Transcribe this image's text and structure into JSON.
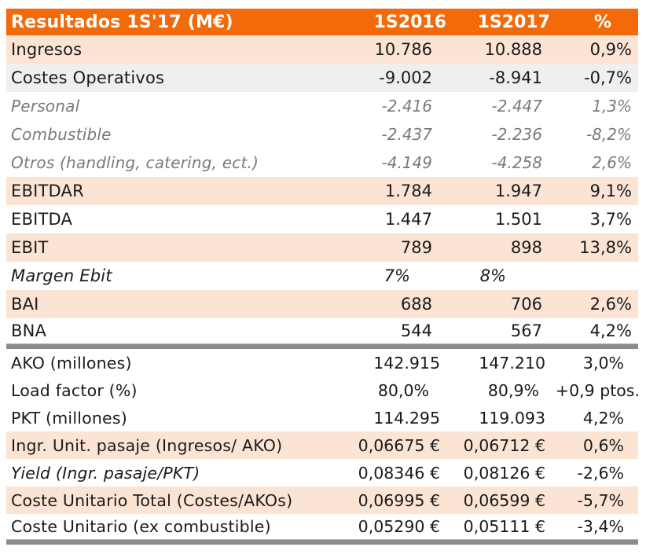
{
  "header": {
    "title": "Resultados 1S'17 (M€)",
    "col_2016": "1S2016",
    "col_2017": "1S2017",
    "col_pct": "%"
  },
  "colors": {
    "header_bg": "#F26A0A",
    "highlight_row": "#FCE4D4",
    "gray_row": "#EFEFEF",
    "rule": "#8C8C8C"
  },
  "results": [
    {
      "label": "Ingresos",
      "y2016": "10.786",
      "y2017": "10.888",
      "pct": "0,9%"
    },
    {
      "label": "Costes Operativos",
      "y2016": "-9.002",
      "y2017": "-8.941",
      "pct": "-0,7%"
    },
    {
      "label": "Personal",
      "y2016": "-2.416",
      "y2017": "-2.447",
      "pct": "1,3%"
    },
    {
      "label": "Combustible",
      "y2016": "-2.437",
      "y2017": "-2.236",
      "pct": "-8,2%"
    },
    {
      "label": "Otros (handling, catering, ect.)",
      "y2016": "-4.149",
      "y2017": "-4.258",
      "pct": "2,6%"
    },
    {
      "label": "EBITDAR",
      "y2016": "1.784",
      "y2017": "1.947",
      "pct": "9,1%"
    },
    {
      "label": "EBITDA",
      "y2016": "1.447",
      "y2017": "1.501",
      "pct": "3,7%"
    },
    {
      "label": "EBIT",
      "y2016": "789",
      "y2017": "898",
      "pct": "13,8%"
    },
    {
      "label": "Margen Ebit",
      "y2016": "7%",
      "y2017": "8%",
      "pct": ""
    },
    {
      "label": "BAI",
      "y2016": "688",
      "y2017": "706",
      "pct": "2,6%"
    },
    {
      "label": "BNA",
      "y2016": "544",
      "y2017": "567",
      "pct": "4,2%"
    }
  ],
  "kpis": [
    {
      "label": "AKO (millones)",
      "y2016": "142.915",
      "y2017": "147.210",
      "pct": "3,0%"
    },
    {
      "label": "Load factor (%)",
      "y2016": "80,0%",
      "y2017": "80,9%",
      "pct": "+0,9 ptos."
    },
    {
      "label": "PKT (millones)",
      "y2016": "114.295",
      "y2017": "119.093",
      "pct": "4,2%"
    },
    {
      "label": "Ingr. Unit. pasaje (Ingresos/ AKO)",
      "y2016": "0,06675 €",
      "y2017": "0,06712 €",
      "pct": "0,6%"
    },
    {
      "label": "Yield (Ingr. pasaje/PKT)",
      "y2016": "0,08346 €",
      "y2017": "0,08126 €",
      "pct": "-2,6%"
    },
    {
      "label": "Coste Unitario Total (Costes/AKOs)",
      "y2016": "0,06995 €",
      "y2017": "0,06599 €",
      "pct": "-5,7%"
    },
    {
      "label": "Coste Unitario (ex combustible)",
      "y2016": "0,05290 €",
      "y2017": "0,05111 €",
      "pct": "-3,4%"
    }
  ]
}
